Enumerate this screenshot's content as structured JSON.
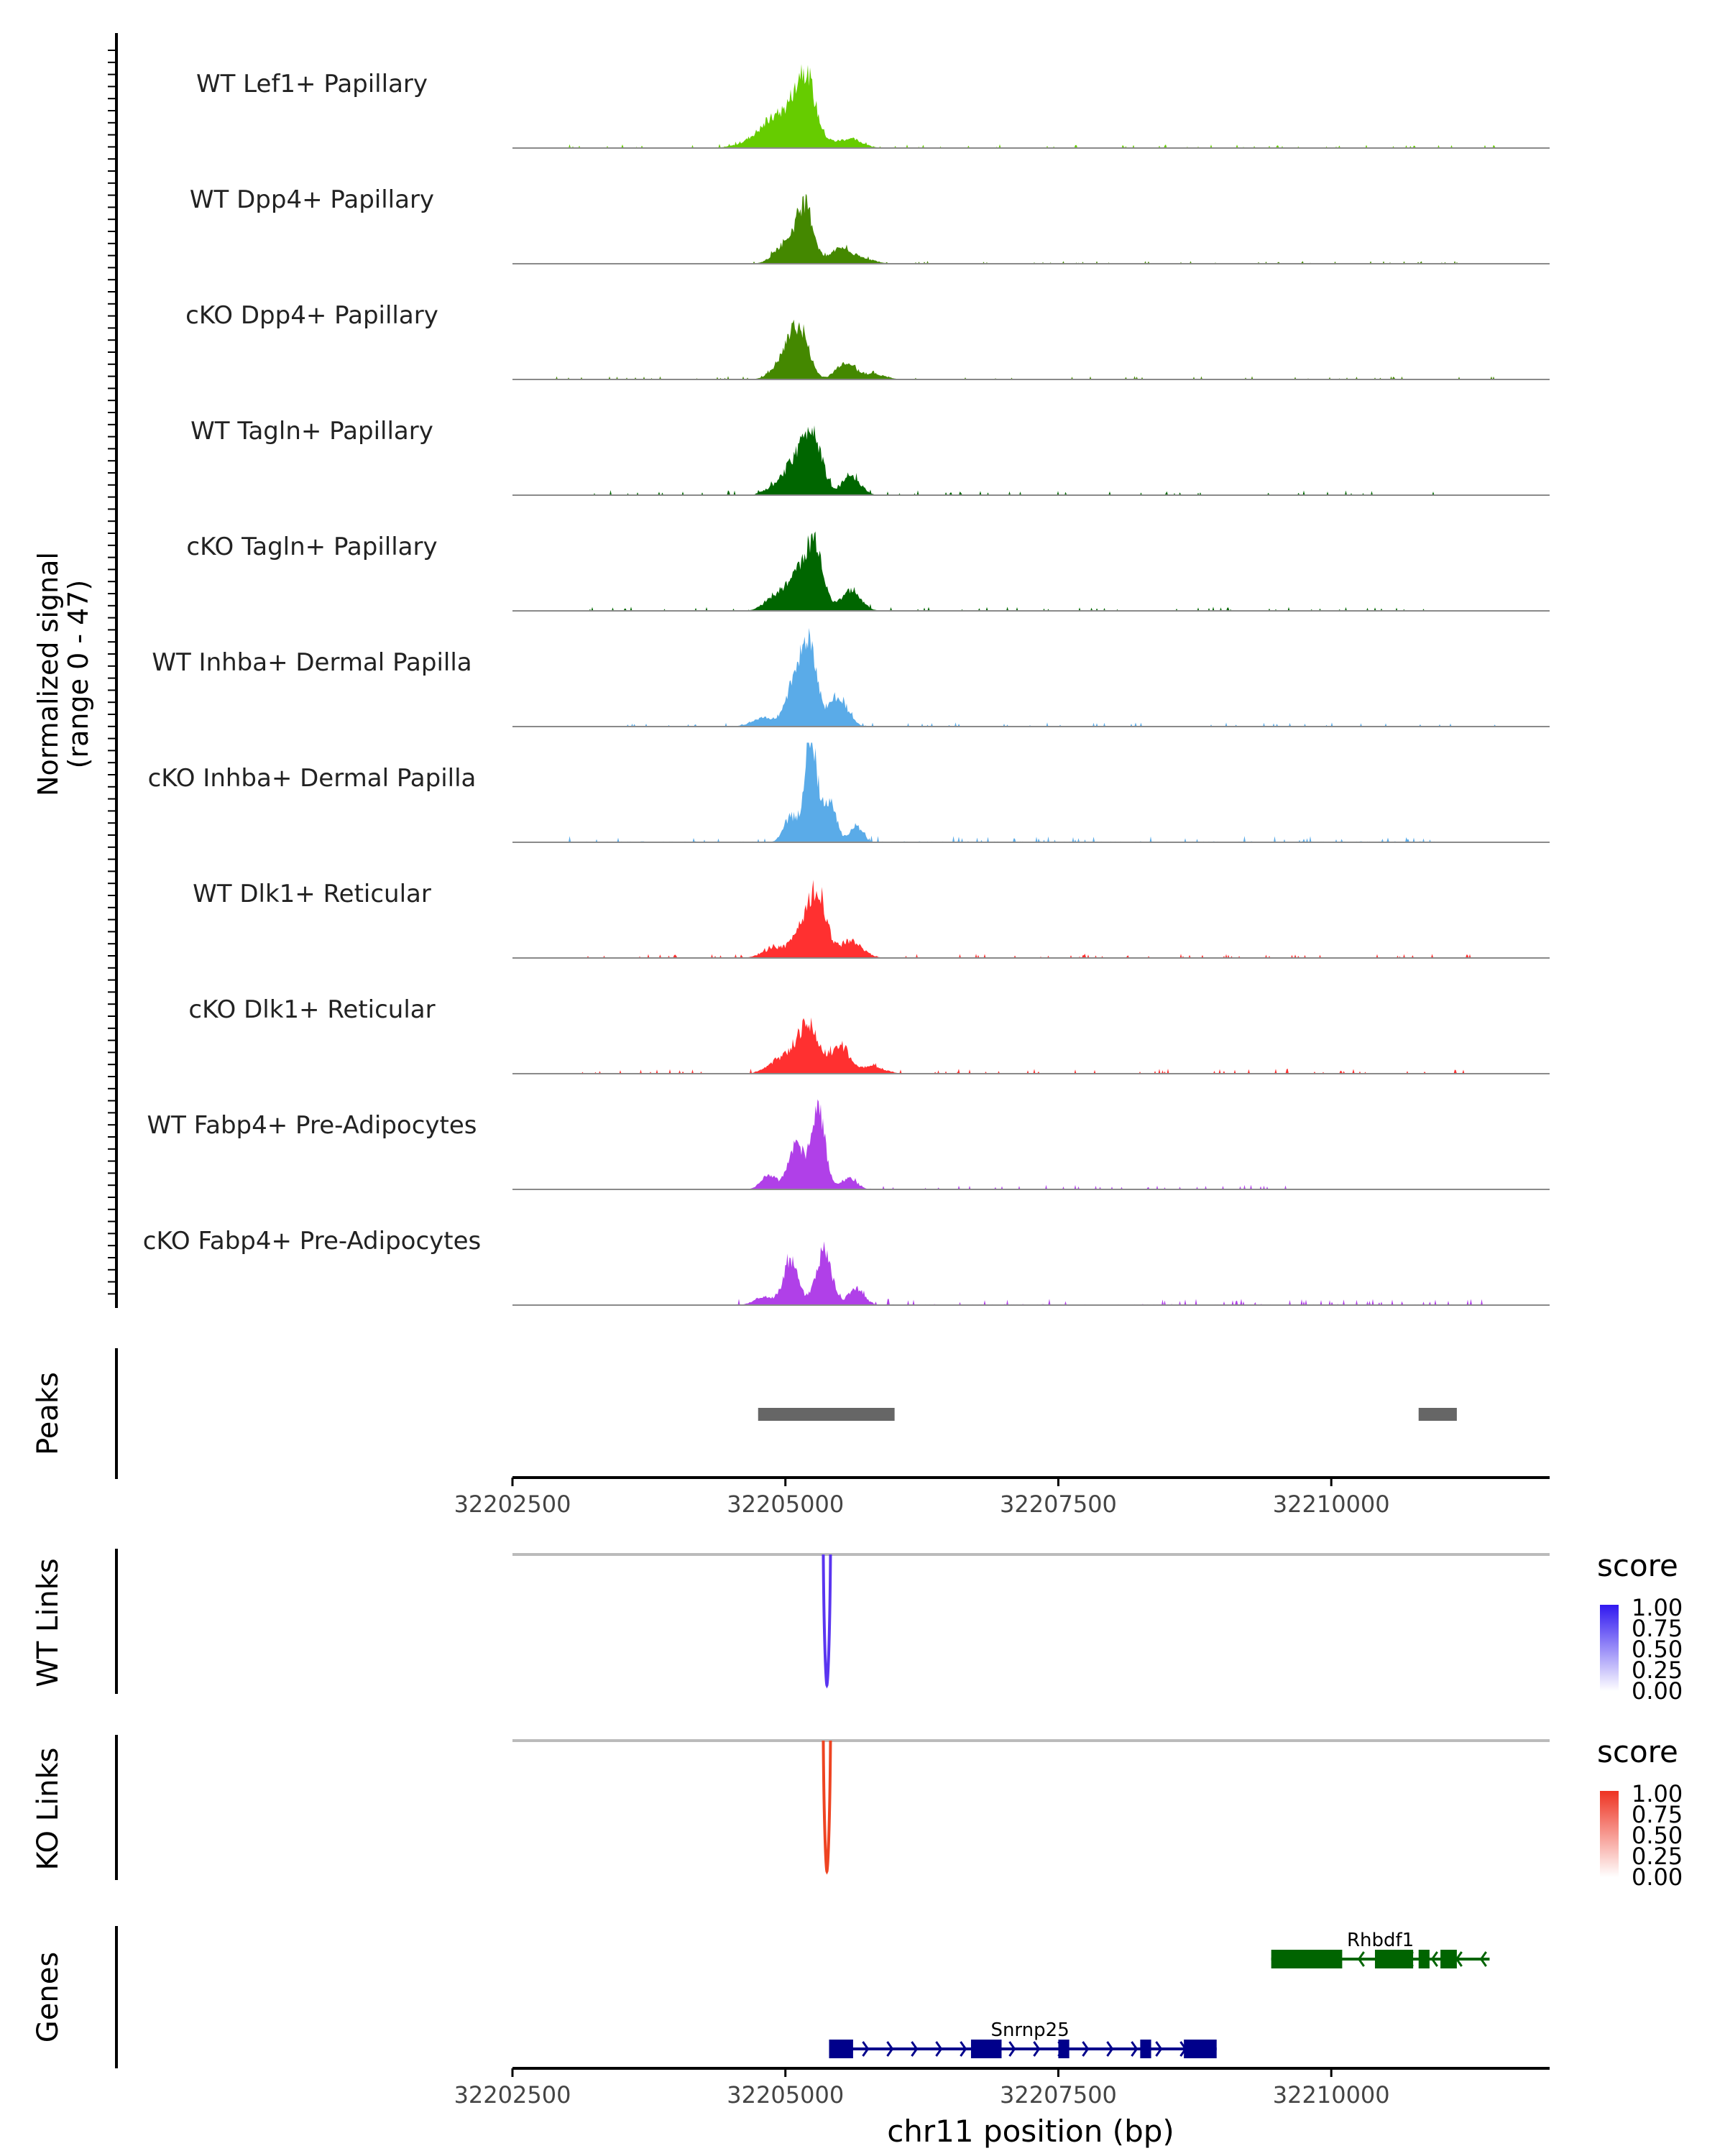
{
  "chart_data": {
    "type": "genome-coverage",
    "region": "chr11",
    "x_range": [
      32202500,
      32212000
    ],
    "x_ticks": [
      32202500,
      32205000,
      32207500,
      32210000
    ],
    "x_tick_labels": [
      "32202500",
      "32205000",
      "32207500",
      "32210000"
    ],
    "xlabel": "chr11 position (bp)",
    "ylabel": "Normalized signal",
    "ylabel_range": "(range 0 - 47)",
    "y_range": [
      0,
      47
    ],
    "tracks": [
      {
        "name": "WT Lef1+ Papillary",
        "color": "#66cc00",
        "peaks": [
          [
            32205000,
            25,
            300
          ],
          [
            32205180,
            39,
            120
          ],
          [
            32205600,
            6,
            150
          ]
        ],
        "bumps": [
          [
            32202800,
            32211800,
            0.9
          ]
        ]
      },
      {
        "name": "WT Dpp4+ Papillary",
        "color": "#448800",
        "peaks": [
          [
            32205000,
            14,
            140
          ],
          [
            32205180,
            40,
            110
          ],
          [
            32205500,
            11,
            120
          ],
          [
            32205700,
            4,
            150
          ]
        ],
        "bumps": [
          [
            32204700,
            32211300,
            0.7
          ]
        ]
      },
      {
        "name": "cKO Dpp4+ Papillary",
        "color": "#448800",
        "peaks": [
          [
            32205000,
            14,
            150
          ],
          [
            32205130,
            32,
            120
          ],
          [
            32205550,
            12,
            120
          ],
          [
            32205800,
            4,
            150
          ]
        ],
        "bumps": [
          [
            32202900,
            32211500,
            0.8
          ]
        ]
      },
      {
        "name": "WT Tagln+ Papillary",
        "color": "#006600",
        "peaks": [
          [
            32204900,
            6,
            120
          ],
          [
            32205080,
            22,
            120
          ],
          [
            32205250,
            45,
            120
          ],
          [
            32205600,
            13,
            120
          ]
        ],
        "bumps": [
          [
            32203000,
            32211000,
            1.2
          ]
        ]
      },
      {
        "name": "cKO Tagln+ Papillary",
        "color": "#006600",
        "peaks": [
          [
            32204900,
            10,
            130
          ],
          [
            32205130,
            29,
            140
          ],
          [
            32205280,
            40,
            100
          ],
          [
            32205600,
            14,
            130
          ]
        ],
        "bumps": [
          [
            32203200,
            32211500,
            1.0
          ]
        ]
      },
      {
        "name": "WT Inhba+ Dermal Papilla",
        "color": "#5aabe8",
        "peaks": [
          [
            32204800,
            6,
            150
          ],
          [
            32205100,
            35,
            120
          ],
          [
            32205230,
            49,
            90
          ],
          [
            32205480,
            22,
            120
          ]
        ],
        "bumps": [
          [
            32203500,
            32211700,
            1.0
          ]
        ]
      },
      {
        "name": "cKO Inhba+ Dermal Papilla",
        "color": "#5aabe8",
        "peaks": [
          [
            32205050,
            18,
            90
          ],
          [
            32205230,
            72,
            80
          ],
          [
            32205400,
            30,
            90
          ],
          [
            32205650,
            12,
            80
          ]
        ],
        "bumps": [
          [
            32203000,
            32211000,
            1.5
          ]
        ]
      },
      {
        "name": "WT Dlk1+ Reticular",
        "color": "#ff3030",
        "peaks": [
          [
            32204900,
            7,
            150
          ],
          [
            32205150,
            20,
            120
          ],
          [
            32205300,
            44,
            110
          ],
          [
            32205600,
            12,
            150
          ]
        ],
        "bumps": [
          [
            32203100,
            32211300,
            1.0
          ]
        ]
      },
      {
        "name": "cKO Dlk1+ Reticular",
        "color": "#ff3030",
        "peaks": [
          [
            32204950,
            10,
            150
          ],
          [
            32205200,
            35,
            140
          ],
          [
            32205500,
            20,
            120
          ],
          [
            32205800,
            5,
            150
          ]
        ],
        "bumps": [
          [
            32202900,
            32211600,
            1.2
          ]
        ]
      },
      {
        "name": "WT Fabp4+ Pre-Adipocytes",
        "color": "#b040e8",
        "peaks": [
          [
            32204850,
            10,
            100
          ],
          [
            32205100,
            32,
            100
          ],
          [
            32205300,
            56,
            90
          ],
          [
            32205580,
            8,
            100
          ]
        ],
        "bumps": [
          [
            32204800,
            32209800,
            1.1
          ]
        ]
      },
      {
        "name": "cKO Fabp4+ Pre-Adipocytes",
        "color": "#b040e8",
        "peaks": [
          [
            32204800,
            6,
            120
          ],
          [
            32205050,
            30,
            100
          ],
          [
            32205350,
            38,
            100
          ],
          [
            32205650,
            12,
            100
          ]
        ],
        "bumps": [
          [
            32204500,
            32211400,
            1.5
          ]
        ]
      }
    ],
    "peaks_track": {
      "label": "Peaks",
      "regions": [
        [
          32204750,
          32206000
        ],
        [
          32210800,
          32211150
        ]
      ]
    },
    "links_tracks": [
      {
        "label": "WT Links",
        "color": "#5a35f0",
        "position": 32205380,
        "legend": {
          "title": "score",
          "ticks": [
            "1.00",
            "0.75",
            "0.50",
            "0.25",
            "0.00"
          ],
          "high": "#3018f0",
          "low": "#ffffff"
        }
      },
      {
        "label": "KO Links",
        "color": "#ee4422",
        "position": 32205380,
        "legend": {
          "title": "score",
          "ticks": [
            "1.00",
            "0.75",
            "0.50",
            "0.25",
            "0.00"
          ],
          "high": "#ee3322",
          "low": "#ffffff"
        }
      }
    ],
    "genes_track": {
      "label": "Genes",
      "genes": [
        {
          "name": "Rhbdf1",
          "strand": "-",
          "color": "#006400",
          "start": 32209450,
          "end": 32211450,
          "exons": [
            [
              32209450,
              32210100
            ],
            [
              32210400,
              32210750
            ],
            [
              32210800,
              32210900
            ],
            [
              32211000,
              32211150
            ]
          ]
        },
        {
          "name": "Snrnp25",
          "strand": "+",
          "color": "#00008b",
          "start": 32205400,
          "end": 32208950,
          "exons": [
            [
              32205400,
              32205620
            ],
            [
              32206700,
              32206980
            ],
            [
              32207500,
              32207600
            ],
            [
              32208250,
              32208350
            ],
            [
              32208650,
              32208950
            ]
          ]
        }
      ]
    }
  }
}
